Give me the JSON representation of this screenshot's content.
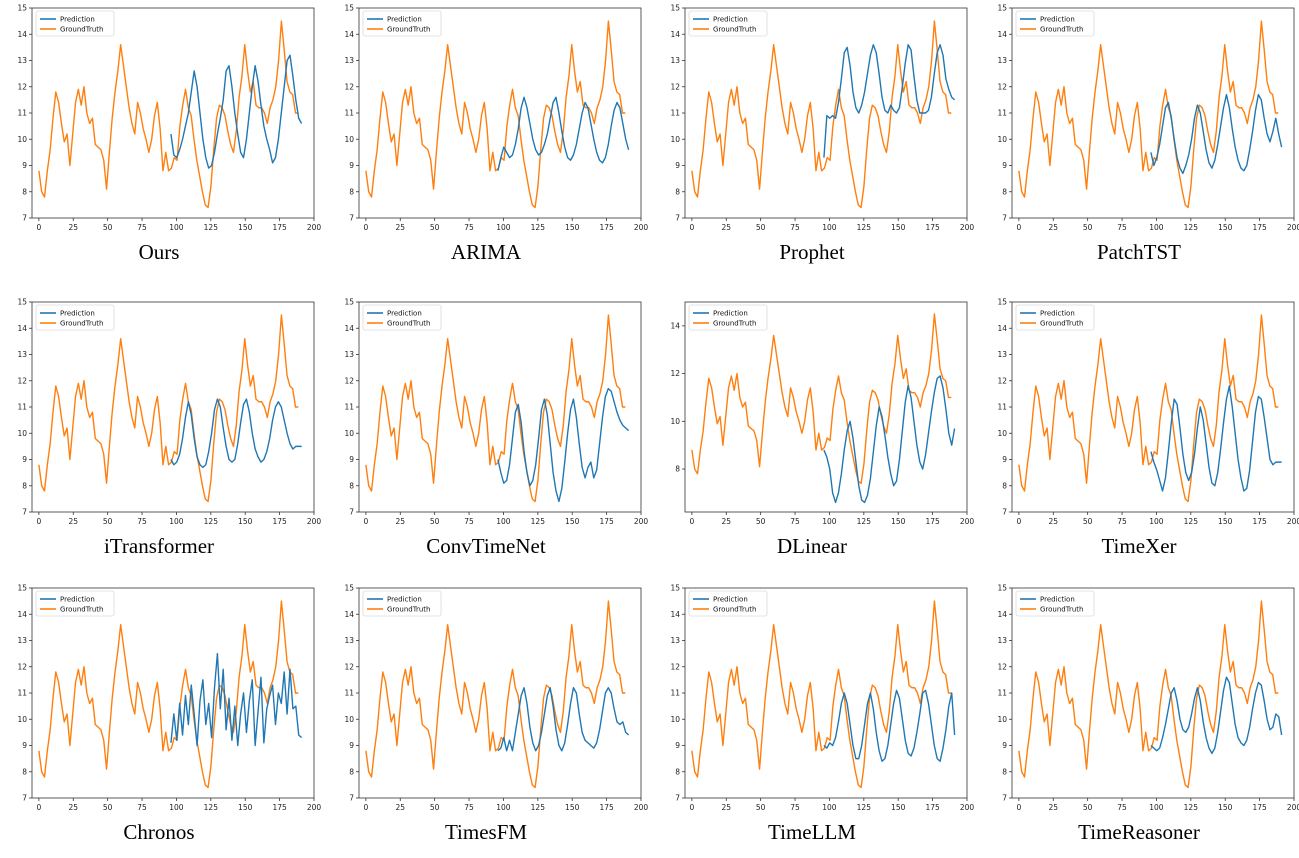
{
  "colors": {
    "prediction": "#1f77b4",
    "ground_truth": "#ff7f0e"
  },
  "chart_data": [
    {
      "type": "line",
      "caption": "Ours",
      "ylim": [
        7,
        15
      ],
      "yticks": [
        7,
        8,
        9,
        10,
        11,
        12,
        13,
        14,
        15
      ],
      "xlim": [
        -5,
        200
      ],
      "xticks": [
        0,
        25,
        50,
        75,
        100,
        125,
        150,
        175,
        200
      ],
      "legend_placement": "top-left",
      "legend": [
        "Prediction",
        "GroundTruth"
      ],
      "pred_start": 96,
      "pred": [
        10.2,
        9.4,
        9.3,
        9.6,
        10.0,
        10.5,
        11.0,
        11.8,
        12.6,
        12.0,
        11.0,
        10.0,
        9.3,
        8.9,
        9.0,
        9.5,
        10.2,
        10.8,
        11.5,
        12.6,
        12.8,
        12.0,
        11.0,
        10.2,
        9.5,
        9.3,
        10.0,
        11.0,
        12.0,
        12.8,
        12.2,
        11.3,
        10.5,
        10.0,
        9.6,
        9.1,
        9.3,
        10.0,
        11.0,
        12.0,
        13.0,
        13.2,
        12.4,
        11.5,
        10.8,
        10.6
      ]
    },
    {
      "type": "line",
      "caption": "ARIMA",
      "ylim": [
        7,
        15
      ],
      "yticks": [
        7,
        8,
        9,
        10,
        11,
        12,
        13,
        14,
        15
      ],
      "xlim": [
        -5,
        200
      ],
      "xticks": [
        0,
        25,
        50,
        75,
        100,
        125,
        150,
        175,
        200
      ],
      "legend_placement": "top-left",
      "legend": [
        "Prediction",
        "GroundTruth"
      ],
      "pred_start": 96,
      "pred": [
        8.8,
        9.3,
        9.7,
        9.5,
        9.3,
        9.4,
        9.8,
        10.4,
        11.2,
        11.6,
        11.2,
        10.6,
        10.0,
        9.6,
        9.4,
        9.5,
        9.8,
        10.2,
        10.8,
        11.4,
        11.6,
        11.0,
        10.3,
        9.7,
        9.3,
        9.2,
        9.4,
        9.8,
        10.4,
        11.0,
        11.4,
        11.2,
        10.6,
        10.0,
        9.5,
        9.2,
        9.1,
        9.3,
        9.8,
        10.5,
        11.1,
        11.4,
        11.2,
        10.6,
        10.0,
        9.6
      ]
    },
    {
      "type": "line",
      "caption": "Prophet",
      "ylim": [
        7,
        15
      ],
      "yticks": [
        7,
        8,
        9,
        10,
        11,
        12,
        13,
        14,
        15
      ],
      "xlim": [
        -5,
        200
      ],
      "xticks": [
        0,
        25,
        50,
        75,
        100,
        125,
        150,
        175,
        200
      ],
      "legend_placement": "top-left",
      "legend": [
        "Prediction",
        "GroundTruth"
      ],
      "pred_start": 96,
      "pred": [
        9.3,
        10.9,
        10.8,
        10.9,
        10.8,
        11.4,
        12.3,
        13.3,
        13.5,
        12.8,
        11.8,
        11.2,
        11.0,
        11.3,
        11.8,
        12.5,
        13.2,
        13.6,
        13.3,
        12.5,
        11.6,
        11.1,
        11.0,
        11.3,
        11.1,
        11.0,
        11.2,
        12.0,
        12.9,
        13.6,
        13.4,
        12.4,
        11.5,
        11.0,
        11.0,
        11.0,
        11.1,
        11.6,
        12.5,
        13.3,
        13.6,
        13.2,
        12.3,
        11.9,
        11.6,
        11.5
      ]
    },
    {
      "type": "line",
      "caption": "PatchTST",
      "ylim": [
        7,
        15
      ],
      "yticks": [
        7,
        8,
        9,
        10,
        11,
        12,
        13,
        14,
        15
      ],
      "xlim": [
        -5,
        200
      ],
      "xticks": [
        0,
        25,
        50,
        75,
        100,
        125,
        150,
        175,
        200
      ],
      "legend_placement": "top-left",
      "legend": [
        "Prediction",
        "GroundTruth"
      ],
      "pred_start": 96,
      "pred": [
        9.5,
        9.0,
        9.3,
        9.8,
        10.5,
        11.2,
        11.4,
        10.8,
        10.0,
        9.3,
        8.9,
        8.7,
        9.0,
        9.4,
        10.0,
        10.8,
        11.3,
        11.0,
        10.3,
        9.6,
        9.1,
        8.9,
        9.2,
        9.8,
        10.5,
        11.2,
        11.7,
        11.2,
        10.4,
        9.7,
        9.2,
        8.9,
        8.8,
        9.0,
        9.6,
        10.3,
        11.1,
        11.7,
        11.5,
        10.8,
        10.2,
        9.9,
        10.3,
        10.8,
        10.2,
        9.7
      ]
    },
    {
      "type": "line",
      "caption": "iTransformer",
      "ylim": [
        7,
        15
      ],
      "yticks": [
        7,
        8,
        9,
        10,
        11,
        12,
        13,
        14,
        15
      ],
      "xlim": [
        -5,
        200
      ],
      "xticks": [
        0,
        25,
        50,
        75,
        100,
        125,
        150,
        175,
        200
      ],
      "legend_placement": "top-left",
      "legend": [
        "Prediction",
        "GroundTruth"
      ],
      "pred_start": 96,
      "pred": [
        9.0,
        8.8,
        8.9,
        9.2,
        9.8,
        10.6,
        11.2,
        10.7,
        9.8,
        9.1,
        8.8,
        8.7,
        8.8,
        9.3,
        10.0,
        10.9,
        11.3,
        11.0,
        10.2,
        9.5,
        9.0,
        8.9,
        9.0,
        9.6,
        10.4,
        11.1,
        11.3,
        10.8,
        10.0,
        9.4,
        9.1,
        8.9,
        9.0,
        9.3,
        9.8,
        10.5,
        11.0,
        11.2,
        11.0,
        10.5,
        10.0,
        9.6,
        9.4,
        9.5,
        9.5,
        9.5
      ]
    },
    {
      "type": "line",
      "caption": "ConvTimeNet",
      "ylim": [
        7,
        15
      ],
      "yticks": [
        7,
        8,
        9,
        10,
        11,
        12,
        13,
        14,
        15
      ],
      "xlim": [
        -5,
        200
      ],
      "xticks": [
        0,
        25,
        50,
        75,
        100,
        125,
        150,
        175,
        200
      ],
      "legend_placement": "top-left",
      "legend": [
        "Prediction",
        "GroundTruth"
      ],
      "pred_start": 96,
      "pred": [
        9.0,
        8.5,
        8.1,
        8.2,
        8.8,
        9.8,
        10.8,
        11.1,
        10.4,
        9.3,
        8.5,
        8.0,
        8.2,
        8.8,
        9.8,
        10.9,
        11.3,
        10.7,
        9.6,
        8.5,
        7.8,
        7.4,
        7.9,
        8.9,
        10.0,
        10.9,
        11.3,
        10.6,
        9.6,
        8.7,
        8.3,
        8.7,
        8.9,
        8.3,
        8.6,
        9.6,
        10.6,
        11.4,
        11.7,
        11.6,
        11.2,
        10.8,
        10.5,
        10.3,
        10.2,
        10.1
      ]
    },
    {
      "type": "line",
      "caption": "DLinear",
      "ylim": [
        6.2,
        15
      ],
      "yticks": [
        8,
        10,
        12,
        14
      ],
      "xlim": [
        -5,
        200
      ],
      "xticks": [
        0,
        25,
        50,
        75,
        100,
        125,
        150,
        175,
        200
      ],
      "legend_placement": "top-left",
      "legend": [
        "Prediction",
        "GroundTruth"
      ],
      "pred_start": 96,
      "pred": [
        8.8,
        8.5,
        8.0,
        7.0,
        6.6,
        7.0,
        7.8,
        8.8,
        9.6,
        10.0,
        9.3,
        8.3,
        7.3,
        6.7,
        6.6,
        6.9,
        7.6,
        8.7,
        9.8,
        10.6,
        10.2,
        9.4,
        8.5,
        7.8,
        7.3,
        7.5,
        8.4,
        9.6,
        10.8,
        11.5,
        11.0,
        10.0,
        9.0,
        8.3,
        8.0,
        8.6,
        9.5,
        10.4,
        11.2,
        11.8,
        11.9,
        11.4,
        10.5,
        9.5,
        9.0,
        9.7
      ]
    },
    {
      "type": "line",
      "caption": "TimeXer",
      "ylim": [
        7,
        15
      ],
      "yticks": [
        7,
        8,
        9,
        10,
        11,
        12,
        13,
        14,
        15
      ],
      "xlim": [
        -5,
        200
      ],
      "xticks": [
        0,
        25,
        50,
        75,
        100,
        125,
        150,
        175,
        200
      ],
      "legend_placement": "top-left",
      "legend": [
        "Prediction",
        "GroundTruth"
      ],
      "pred_start": 96,
      "pred": [
        9.3,
        8.9,
        8.6,
        8.2,
        7.8,
        8.3,
        9.3,
        10.4,
        11.3,
        11.1,
        10.2,
        9.2,
        8.5,
        8.2,
        8.5,
        9.2,
        10.2,
        11.0,
        10.5,
        9.6,
        8.7,
        8.1,
        8.0,
        8.5,
        9.4,
        10.4,
        11.3,
        11.8,
        11.0,
        10.0,
        9.0,
        8.3,
        7.8,
        7.9,
        8.6,
        9.7,
        10.8,
        11.4,
        11.3,
        10.6,
        9.8,
        9.0,
        8.8,
        8.9,
        8.9,
        8.9
      ]
    },
    {
      "type": "line",
      "caption": "Chronos",
      "ylim": [
        7,
        15
      ],
      "yticks": [
        7,
        8,
        9,
        10,
        11,
        12,
        13,
        14,
        15
      ],
      "xlim": [
        -5,
        200
      ],
      "xticks": [
        0,
        25,
        50,
        75,
        100,
        125,
        150,
        175,
        200
      ],
      "legend_placement": "top-left",
      "legend": [
        "Prediction",
        "GroundTruth"
      ],
      "pred_start": 96,
      "pred": [
        9.1,
        10.2,
        9.2,
        10.6,
        9.4,
        10.9,
        9.8,
        11.3,
        10.2,
        9.0,
        10.7,
        11.5,
        9.8,
        10.6,
        9.3,
        11.2,
        12.5,
        10.4,
        11.9,
        9.6,
        10.8,
        9.2,
        10.5,
        9.0,
        10.2,
        11.0,
        9.5,
        10.7,
        11.5,
        9.0,
        10.3,
        11.6,
        9.1,
        10.4,
        10.9,
        11.3,
        9.8,
        11.0,
        10.6,
        11.8,
        10.2,
        11.9,
        10.4,
        10.5,
        9.4,
        9.3
      ]
    },
    {
      "type": "line",
      "caption": "TimesFM",
      "ylim": [
        7,
        15
      ],
      "yticks": [
        7,
        8,
        9,
        10,
        11,
        12,
        13,
        14,
        15
      ],
      "xlim": [
        -5,
        200
      ],
      "xticks": [
        0,
        25,
        50,
        75,
        100,
        125,
        150,
        175,
        200
      ],
      "legend_placement": "top-left",
      "legend": [
        "Prediction",
        "GroundTruth"
      ],
      "pred_start": 96,
      "pred": [
        8.8,
        8.9,
        9.3,
        8.8,
        9.2,
        8.8,
        9.5,
        10.2,
        10.9,
        11.2,
        10.6,
        9.7,
        9.1,
        8.8,
        9.0,
        9.5,
        10.2,
        10.9,
        11.2,
        10.5,
        9.6,
        9.0,
        8.8,
        9.1,
        9.8,
        10.6,
        11.2,
        11.0,
        10.2,
        9.5,
        9.2,
        9.1,
        9.0,
        8.9,
        9.1,
        9.6,
        10.3,
        11.0,
        11.2,
        11.0,
        10.4,
        9.9,
        9.8,
        9.9,
        9.5,
        9.4
      ]
    },
    {
      "type": "line",
      "caption": "TimeLLM",
      "ylim": [
        7,
        15
      ],
      "yticks": [
        7,
        8,
        9,
        10,
        11,
        12,
        13,
        14,
        15
      ],
      "xlim": [
        -5,
        200
      ],
      "xticks": [
        0,
        25,
        50,
        75,
        100,
        125,
        150,
        175,
        200
      ],
      "legend_placement": "top-left",
      "legend": [
        "Prediction",
        "GroundTruth"
      ],
      "pred_start": 96,
      "pred": [
        9.0,
        8.9,
        9.1,
        9.0,
        9.3,
        9.9,
        10.6,
        11.0,
        10.6,
        9.8,
        9.0,
        8.5,
        8.5,
        9.0,
        9.8,
        10.6,
        11.0,
        10.4,
        9.5,
        8.8,
        8.4,
        8.5,
        9.0,
        9.8,
        10.6,
        11.1,
        10.8,
        10.0,
        9.2,
        8.7,
        8.6,
        8.9,
        9.5,
        10.2,
        11.0,
        11.1,
        10.6,
        9.8,
        9.0,
        8.5,
        8.4,
        8.9,
        9.6,
        10.5,
        11.0,
        9.4
      ]
    },
    {
      "type": "line",
      "caption": "TimeReasoner",
      "ylim": [
        7,
        15
      ],
      "yticks": [
        7,
        8,
        9,
        10,
        11,
        12,
        13,
        14,
        15
      ],
      "xlim": [
        -5,
        200
      ],
      "xticks": [
        0,
        25,
        50,
        75,
        100,
        125,
        150,
        175,
        200
      ],
      "legend_placement": "top-left",
      "legend": [
        "Prediction",
        "GroundTruth"
      ],
      "pred_start": 96,
      "pred": [
        9.0,
        8.9,
        8.8,
        8.9,
        9.3,
        9.8,
        10.4,
        11.0,
        11.2,
        10.7,
        10.0,
        9.6,
        9.5,
        9.7,
        10.2,
        10.8,
        11.2,
        10.7,
        9.9,
        9.3,
        8.9,
        8.7,
        8.9,
        9.5,
        10.3,
        11.1,
        11.6,
        11.4,
        10.6,
        9.8,
        9.3,
        9.1,
        9.0,
        9.2,
        9.7,
        10.4,
        11.0,
        11.4,
        11.3,
        10.7,
        10.0,
        9.6,
        9.7,
        10.2,
        10.1,
        9.4
      ]
    }
  ]
}
